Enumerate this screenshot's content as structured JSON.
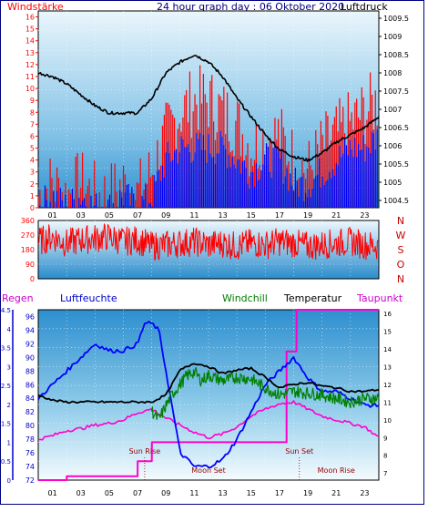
{
  "header": {
    "left_label": "Windstärke",
    "title": "24 hour graph day : 06 Oktober 2020",
    "right_label": "Luftdruck"
  },
  "bottom_header": {
    "regen": "Regen",
    "luftfeuchte": "Luftfeuchte",
    "windchill": "Windchill",
    "temperatur": "Temperatur",
    "taupunkt": "Taupunkt"
  },
  "x_ticks": [
    "01",
    "03",
    "05",
    "07",
    "09",
    "11",
    "13",
    "15",
    "17",
    "19",
    "21",
    "23"
  ],
  "colors": {
    "wind": "#ff0000",
    "gust": "#0000ff",
    "pressure": "#000000",
    "humidity": "#0000ff",
    "windchill": "#008000",
    "temperature": "#000000",
    "dewpoint": "#ff00cc",
    "rain": "#ff00cc",
    "annotation": "#990000",
    "frame": "#000080"
  },
  "chart_data": [
    {
      "type": "line",
      "title": "24 hour graph day : 06 Oktober 2020",
      "y_left_label": "Windstärke",
      "y_right_label": "Luftdruck",
      "y_left_ticks": [
        "0",
        "1",
        "2",
        "3",
        "4",
        "5",
        "6",
        "7",
        "8",
        "9",
        "10",
        "11",
        "12",
        "13",
        "14",
        "15",
        "16"
      ],
      "y_right_ticks": [
        "1004.5",
        "1005",
        "1005.5",
        "1006",
        "1006.5",
        "1007",
        "1007.5",
        "1008",
        "1008.5",
        "1009",
        "1009.5"
      ],
      "y_left_range": [
        0,
        16.5
      ],
      "y_right_range": [
        1004.3,
        1009.7
      ],
      "x_range": [
        0,
        24
      ],
      "series": [
        {
          "key": "pressure",
          "x": [
            0,
            1,
            2,
            3,
            4,
            5,
            6,
            7,
            8,
            9,
            10,
            11,
            12,
            13,
            14,
            15,
            16,
            17,
            18,
            19,
            20,
            21,
            22,
            23,
            24
          ],
          "values": [
            1008.0,
            1007.9,
            1007.7,
            1007.4,
            1007.1,
            1006.9,
            1006.9,
            1006.9,
            1007.3,
            1008.0,
            1008.3,
            1008.5,
            1008.3,
            1007.9,
            1007.3,
            1006.8,
            1006.3,
            1005.9,
            1005.7,
            1005.6,
            1005.8,
            1006.1,
            1006.3,
            1006.5,
            1006.8
          ]
        },
        {
          "key": "wind",
          "x": [
            0,
            1,
            2,
            3,
            4,
            5,
            6,
            7,
            8,
            9,
            10,
            11,
            12,
            13,
            14,
            15,
            16,
            17,
            18,
            19,
            20,
            21,
            22,
            23,
            24
          ],
          "values": [
            1,
            2,
            1,
            2,
            1,
            1,
            2,
            1,
            3,
            6,
            8,
            9,
            9,
            8,
            7,
            5,
            6,
            6,
            4,
            3,
            5,
            6,
            7,
            8,
            9
          ]
        },
        {
          "key": "gust",
          "x": [
            0,
            1,
            2,
            3,
            4,
            5,
            6,
            7,
            8,
            9,
            10,
            11,
            12,
            13,
            14,
            15,
            16,
            17,
            18,
            19,
            20,
            21,
            22,
            23,
            24
          ],
          "values": [
            0,
            1,
            0,
            1,
            0,
            0,
            1,
            0,
            1,
            4,
            5,
            5,
            5,
            5,
            4,
            3,
            4,
            4,
            2,
            2,
            3,
            4,
            5,
            5,
            6
          ]
        }
      ]
    },
    {
      "type": "line",
      "y_left_ticks": [
        "0",
        "90",
        "180",
        "270",
        "360"
      ],
      "y_right_letters": [
        "N",
        "W",
        "S",
        "O",
        "N"
      ],
      "y_range": [
        0,
        360
      ],
      "x_range": [
        0,
        24
      ],
      "series": [
        {
          "key": "wind_direction",
          "x": [
            0,
            1,
            2,
            3,
            4,
            5,
            6,
            7,
            8,
            9,
            10,
            11,
            12,
            13,
            14,
            15,
            16,
            17,
            18,
            19,
            20,
            21,
            22,
            23,
            24
          ],
          "values": [
            230,
            260,
            220,
            240,
            250,
            260,
            230,
            240,
            200,
            210,
            220,
            230,
            210,
            220,
            200,
            220,
            210,
            230,
            220,
            200,
            210,
            220,
            230,
            210,
            200
          ]
        }
      ]
    },
    {
      "type": "line",
      "y_regen_ticks": [
        "0",
        "0.5",
        "1",
        "1.5",
        "2",
        "2.5",
        "3",
        "3.5",
        "4",
        "4.5"
      ],
      "y_humidity_ticks": [
        "72",
        "74",
        "76",
        "78",
        "80",
        "82",
        "84",
        "86",
        "88",
        "90",
        "92",
        "94",
        "96"
      ],
      "y_temp_ticks": [
        "7",
        "8",
        "9",
        "10",
        "11",
        "12",
        "13",
        "14",
        "15",
        "16"
      ],
      "regen_range": [
        0,
        4.5
      ],
      "humidity_range": [
        72,
        97
      ],
      "temp_range": [
        6.6,
        16.2
      ],
      "x_range": [
        0,
        24
      ],
      "annotations": [
        {
          "text": "Sun Rise",
          "hour": 7.5
        },
        {
          "text": "Moon Set",
          "hour": 12.0
        },
        {
          "text": "Sun Set",
          "hour": 18.4
        },
        {
          "text": "Moon Rise",
          "hour": 21.0
        }
      ],
      "series": [
        {
          "key": "humidity",
          "x": [
            0,
            1,
            2,
            3,
            4,
            5,
            6,
            7,
            7.5,
            8,
            8.5,
            9,
            10,
            11,
            12,
            13,
            14,
            15,
            16,
            17,
            18,
            19,
            20,
            21,
            22,
            23,
            24
          ],
          "values": [
            84,
            86,
            88,
            90,
            92,
            91,
            91,
            92,
            95,
            95,
            94,
            88,
            76,
            74,
            74,
            75,
            78,
            82,
            86,
            88,
            90,
            87,
            85,
            85,
            84,
            83,
            83
          ]
        },
        {
          "key": "temperature",
          "x": [
            0,
            1,
            2,
            3,
            4,
            5,
            6,
            7,
            8,
            9,
            10,
            11,
            12,
            13,
            14,
            15,
            16,
            17,
            18,
            19,
            20,
            21,
            22,
            23,
            24
          ],
          "values": [
            11.4,
            11.1,
            11.0,
            11.0,
            11.0,
            11.0,
            11.0,
            11.0,
            11.0,
            11.4,
            12.8,
            13.2,
            13.0,
            12.6,
            12.8,
            12.9,
            12.4,
            11.8,
            12.0,
            12.1,
            11.9,
            11.8,
            11.6,
            11.6,
            11.7
          ]
        },
        {
          "key": "windchill",
          "x": [
            8,
            8.5,
            9,
            9.5,
            10,
            10.5,
            11,
            11.5,
            12,
            13,
            14,
            15,
            16,
            17,
            18,
            19,
            20,
            21,
            22,
            23,
            24
          ],
          "values": [
            10.5,
            10.0,
            10.8,
            11.5,
            12.0,
            12.5,
            12.7,
            12.2,
            12.5,
            12.2,
            12.4,
            12.3,
            11.8,
            11.4,
            11.6,
            11.5,
            11.4,
            11.2,
            11.0,
            11.2,
            11.2
          ]
        },
        {
          "key": "dewpoint",
          "x": [
            0,
            1,
            2,
            3,
            4,
            5,
            6,
            7,
            8,
            9,
            10,
            11,
            12,
            13,
            14,
            15,
            16,
            17,
            18,
            19,
            20,
            21,
            22,
            23,
            24
          ],
          "values": [
            8.9,
            9.1,
            9.4,
            9.5,
            9.7,
            9.8,
            10.0,
            10.4,
            10.6,
            10.1,
            9.7,
            9.3,
            9.0,
            9.2,
            9.6,
            10.2,
            10.6,
            10.9,
            11.0,
            10.6,
            10.2,
            10.0,
            9.8,
            9.6,
            9.0
          ]
        },
        {
          "key": "rain",
          "x": [
            0,
            2,
            2.01,
            7,
            7.01,
            8,
            8.01,
            17.5,
            17.5,
            18.2,
            18.21,
            24
          ],
          "values": [
            0,
            0,
            0.1,
            0.1,
            0.5,
            0.5,
            1.0,
            1.0,
            3.4,
            3.4,
            4.5,
            4.5
          ]
        }
      ]
    }
  ]
}
